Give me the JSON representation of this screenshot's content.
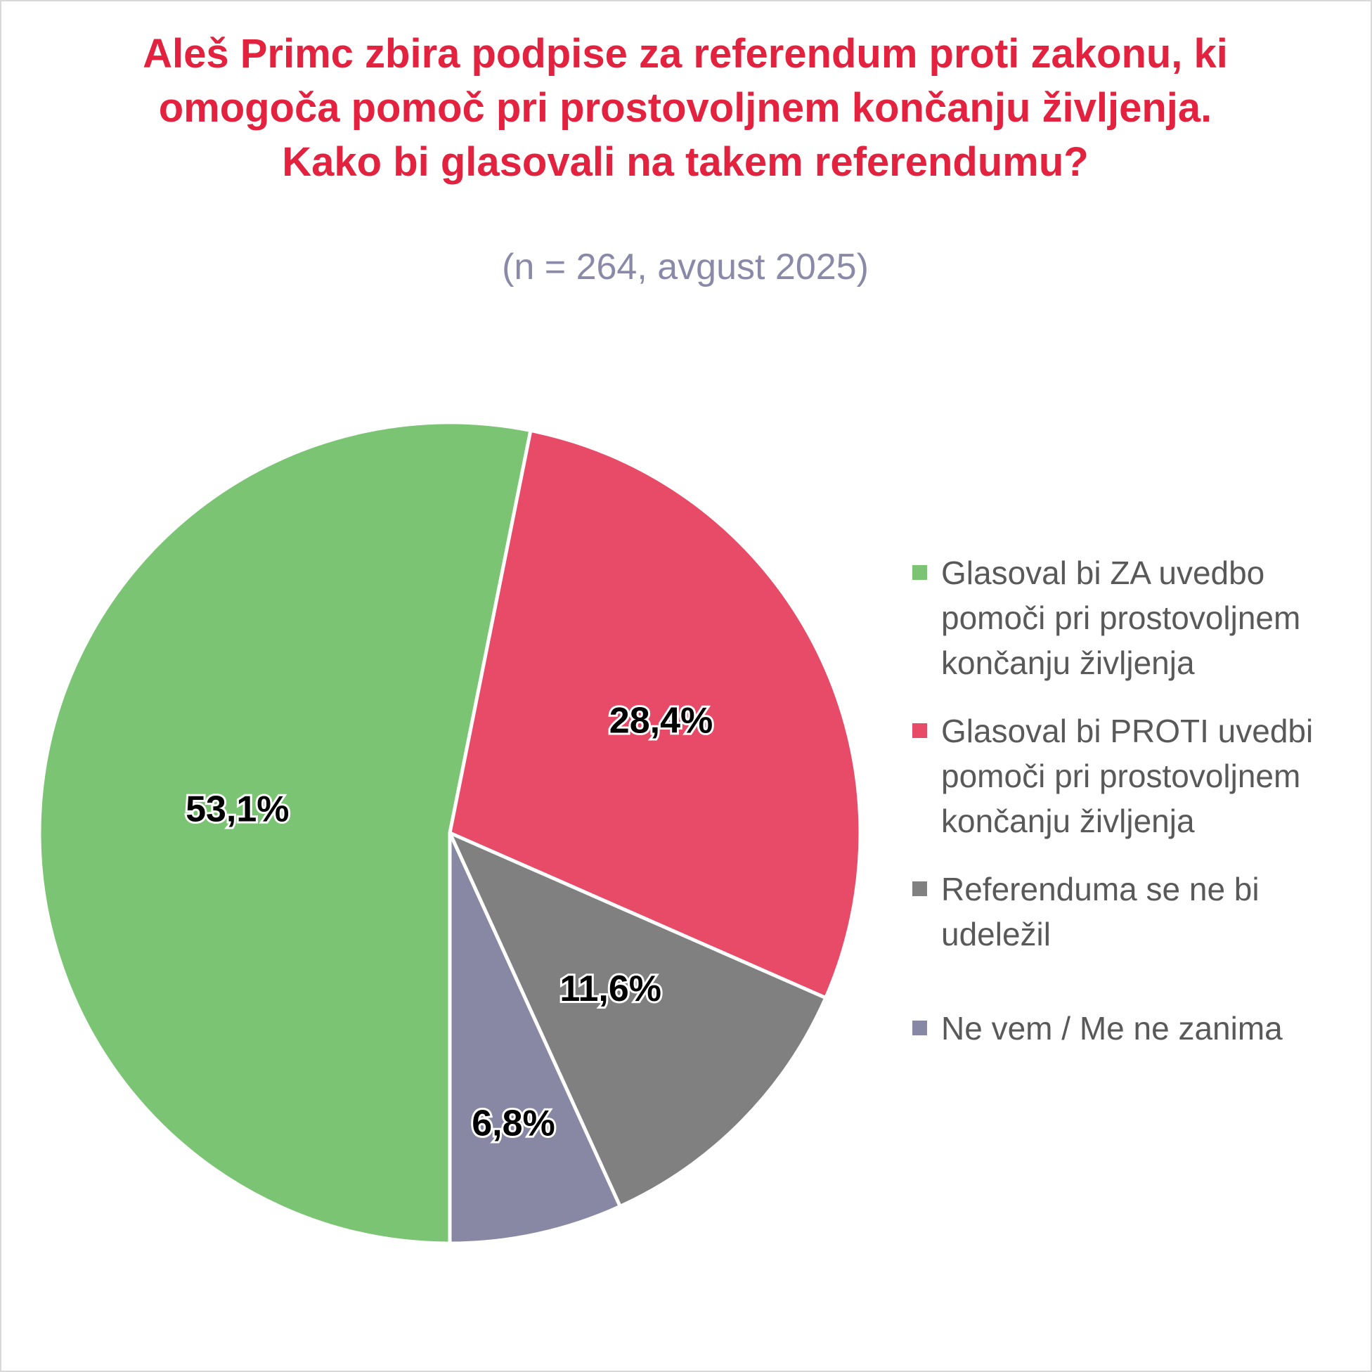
{
  "chart_data": {
    "type": "pie",
    "title": "Aleš Primc zbira podpise za referendum proti zakonu, ki omogoča pomoč pri prostovoljnem končanju življenja. Kako bi glasovali na takem referendumu?",
    "subtitle": "(n = 264, avgust 2025)",
    "legend_position": "right",
    "slices": [
      {
        "label": "Glasoval bi ZA uvedbo pomoči pri prostovoljnem končanju življenja",
        "value": 53.1,
        "value_label": "53,1%",
        "color": "#7ac474"
      },
      {
        "label": "Glasoval bi PROTI uvedbi pomoči pri prostovoljnem končanju življenja",
        "value": 28.4,
        "value_label": "28,4%",
        "color": "#e84b68"
      },
      {
        "label": "Referenduma se ne bi udeležil",
        "value": 11.6,
        "value_label": "11,6%",
        "color": "#808080"
      },
      {
        "label": "Ne vem / Me ne zanima",
        "value": 6.8,
        "value_label": "6,8%",
        "color": "#8888a4"
      }
    ]
  }
}
